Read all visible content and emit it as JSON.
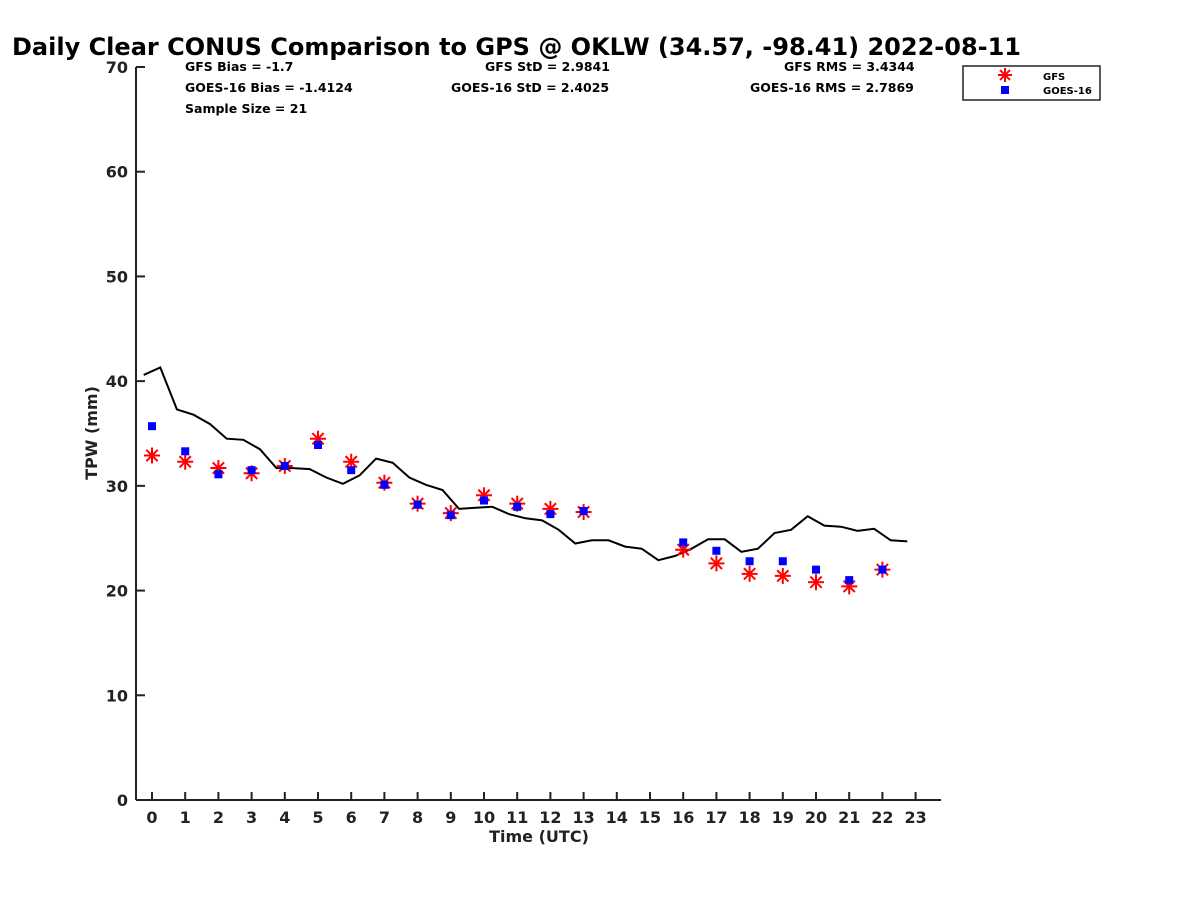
{
  "chart_data": {
    "type": "scatter",
    "title": "Daily Clear CONUS Comparison to GPS @ OKLW (34.57, -98.41) 2022-08-11",
    "xlabel": "Time (UTC)",
    "ylabel": "TPW (mm)",
    "xlim": [
      -0.5,
      23.7
    ],
    "ylim": [
      0,
      70
    ],
    "xticks": [
      "0",
      "1",
      "2",
      "3",
      "4",
      "5",
      "6",
      "7",
      "8",
      "9",
      "10",
      "11",
      "12",
      "13",
      "14",
      "15",
      "16",
      "17",
      "18",
      "19",
      "20",
      "21",
      "22",
      "23"
    ],
    "yticks": [
      "0",
      "10",
      "20",
      "30",
      "40",
      "50",
      "60",
      "70"
    ],
    "legend_position": "top-right",
    "stats": {
      "gfs_bias": "GFS Bias = -1.7",
      "goes_bias": "GOES-16 Bias = -1.4124",
      "sample_size": "Sample Size = 21",
      "gfs_std": "GFS StD = 2.9841",
      "goes_std": "GOES-16 StD = 2.4025",
      "gfs_rms": "GFS RMS = 3.4344",
      "goes_rms": "GOES-16 RMS = 2.7869"
    },
    "series": [
      {
        "name": "GPS",
        "kind": "line",
        "color": "#000000",
        "x": [
          -0.25,
          0.25,
          0.75,
          1.25,
          1.75,
          2.25,
          2.75,
          3.25,
          3.75,
          4.25,
          4.75,
          5.25,
          5.75,
          6.25,
          6.75,
          7.25,
          7.75,
          8.25,
          8.75,
          9.25,
          9.75,
          10.25,
          10.75,
          11.25,
          11.75,
          12.25,
          12.75,
          13.25,
          13.75,
          14.25,
          14.75,
          15.25,
          15.75,
          16.25,
          16.75,
          17.25,
          17.75,
          18.25,
          18.75,
          19.25,
          19.75,
          20.25,
          20.75,
          21.25,
          21.75,
          22.25,
          22.75
        ],
        "y": [
          40.6,
          41.3,
          37.3,
          36.8,
          35.9,
          34.5,
          34.4,
          33.5,
          31.7,
          31.7,
          31.6,
          30.8,
          30.2,
          31.0,
          32.6,
          32.2,
          30.8,
          30.1,
          29.6,
          27.8,
          27.9,
          28.0,
          27.3,
          26.9,
          26.7,
          25.8,
          24.5,
          24.8,
          24.8,
          24.2,
          24.0,
          22.9,
          23.3,
          24.0,
          24.9,
          24.9,
          23.7,
          24.0,
          25.5,
          25.8,
          27.1,
          26.2,
          26.1,
          25.7,
          25.9,
          24.8,
          24.7
        ]
      },
      {
        "name": "GFS",
        "kind": "marker-asterisk",
        "color": "#ff0000",
        "x": [
          0,
          1,
          2,
          3,
          4,
          5,
          6,
          7,
          8,
          9,
          10,
          11,
          12,
          13,
          16,
          17,
          18,
          19,
          20,
          21,
          22
        ],
        "y": [
          32.9,
          32.3,
          31.7,
          31.2,
          31.9,
          34.5,
          32.3,
          30.3,
          28.3,
          27.4,
          29.1,
          28.3,
          27.8,
          27.5,
          23.9,
          22.6,
          21.6,
          21.4,
          20.8,
          20.4,
          22.0
        ]
      },
      {
        "name": "GOES-16",
        "kind": "marker-square",
        "color": "#0000ff",
        "x": [
          0,
          1,
          2,
          3,
          4,
          5,
          6,
          7,
          8,
          9,
          10,
          11,
          12,
          13,
          16,
          17,
          18,
          19,
          20,
          21,
          22
        ],
        "y": [
          35.7,
          33.3,
          31.1,
          31.5,
          31.9,
          33.9,
          31.5,
          30.1,
          28.2,
          27.2,
          28.6,
          28.0,
          27.3,
          27.6,
          24.6,
          23.8,
          22.8,
          22.8,
          22.0,
          21.0,
          22.0
        ]
      }
    ]
  }
}
